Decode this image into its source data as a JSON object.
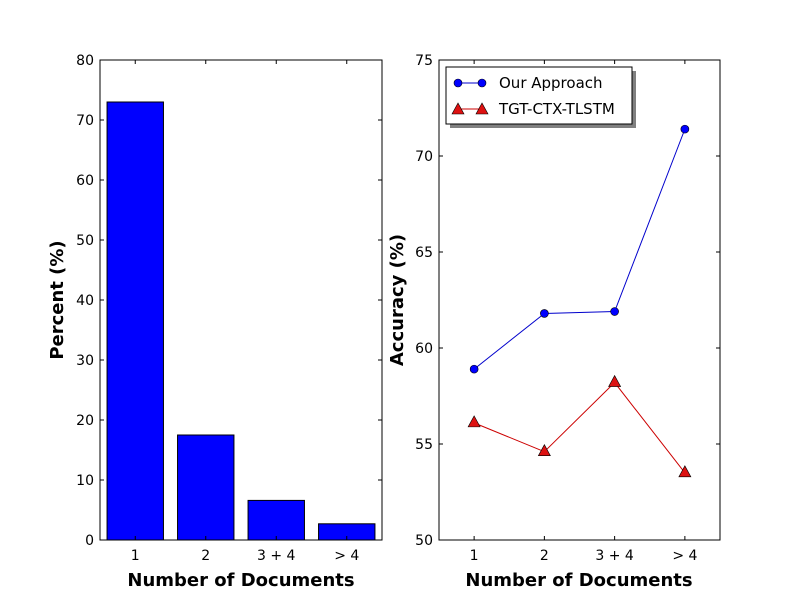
{
  "chart_data": [
    {
      "type": "bar",
      "categories": [
        "1",
        "2",
        "3 + 4",
        "> 4"
      ],
      "values": [
        73,
        17.5,
        6.6,
        2.7
      ],
      "color": "#0000ff",
      "xlabel": "Number of Documents",
      "ylabel": "Percent (%)",
      "ylim": [
        0,
        80
      ],
      "yticks": [
        0,
        10,
        20,
        30,
        40,
        50,
        60,
        70,
        80
      ],
      "grid": false
    },
    {
      "type": "line",
      "categories": [
        "1",
        "2",
        "3 + 4",
        "> 4"
      ],
      "series": [
        {
          "name": "Our Approach",
          "values": [
            58.9,
            61.8,
            61.9,
            71.4
          ],
          "color": "#0000cc",
          "marker": "circle"
        },
        {
          "name": "TGT-CTX-TLSTM",
          "values": [
            56.1,
            54.6,
            58.2,
            53.5
          ],
          "color": "#cc0000",
          "marker": "triangle"
        }
      ],
      "xlabel": "Number of Documents",
      "ylabel": "Accuracy (%)",
      "ylim": [
        50,
        75
      ],
      "yticks": [
        50,
        55,
        60,
        65,
        70,
        75
      ],
      "legend_position": "top-left",
      "grid": false
    }
  ]
}
